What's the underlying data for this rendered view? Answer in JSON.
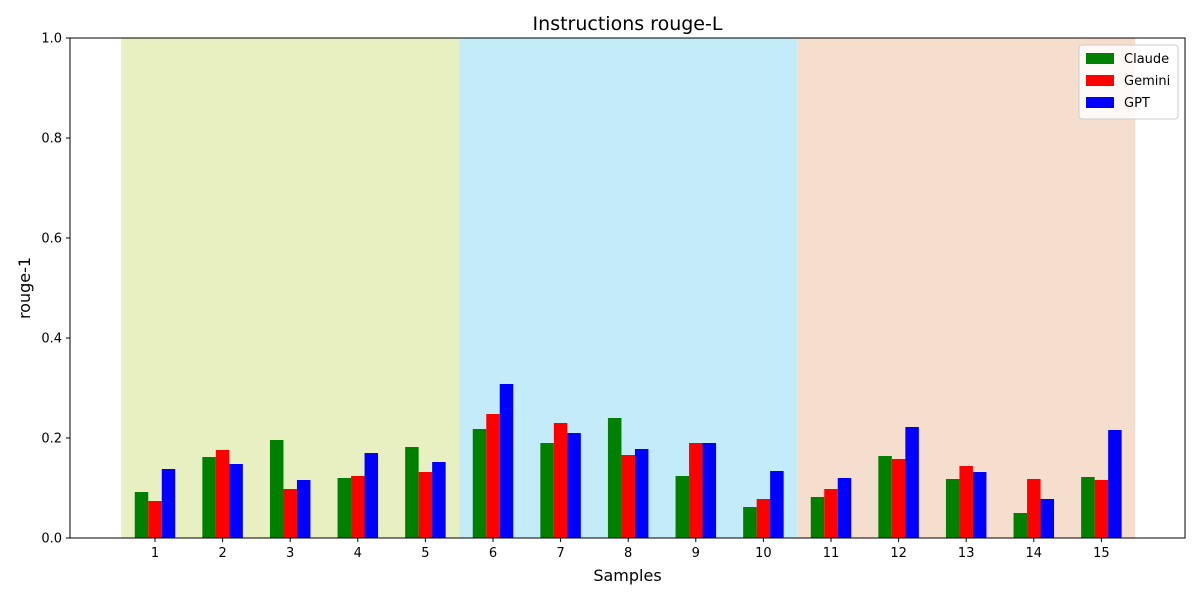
{
  "chart_data": {
    "type": "bar",
    "title": "Instructions rouge-L",
    "xlabel": "Samples",
    "ylabel": "rouge-1",
    "ylim": [
      0,
      1.0
    ],
    "yticks": [
      "0.0",
      "0.2",
      "0.4",
      "0.6",
      "0.8",
      "1.0"
    ],
    "categories": [
      "1",
      "2",
      "3",
      "4",
      "5",
      "6",
      "7",
      "8",
      "9",
      "10",
      "11",
      "12",
      "13",
      "14",
      "15"
    ],
    "series": [
      {
        "name": "Claude",
        "color": "#008000",
        "values": [
          0.092,
          0.162,
          0.196,
          0.12,
          0.182,
          0.218,
          0.19,
          0.24,
          0.124,
          0.062,
          0.082,
          0.164,
          0.118,
          0.05,
          0.122
        ]
      },
      {
        "name": "Gemini",
        "color": "#ff0000",
        "values": [
          0.074,
          0.176,
          0.098,
          0.124,
          0.132,
          0.248,
          0.23,
          0.166,
          0.19,
          0.078,
          0.098,
          0.158,
          0.144,
          0.118,
          0.116
        ]
      },
      {
        "name": "GPT",
        "color": "#0000ff",
        "values": [
          0.138,
          0.148,
          0.116,
          0.17,
          0.152,
          0.308,
          0.21,
          0.178,
          0.19,
          0.134,
          0.12,
          0.222,
          0.132,
          0.078,
          0.216
        ]
      }
    ],
    "background_bands": [
      {
        "from_sample": 1,
        "to_sample": 5,
        "color": "#e8f0c2"
      },
      {
        "from_sample": 6,
        "to_sample": 10,
        "color": "#c4ebf8"
      },
      {
        "from_sample": 11,
        "to_sample": 15,
        "color": "#f6decf"
      }
    ],
    "legend_position": "top-right",
    "grid": false
  }
}
